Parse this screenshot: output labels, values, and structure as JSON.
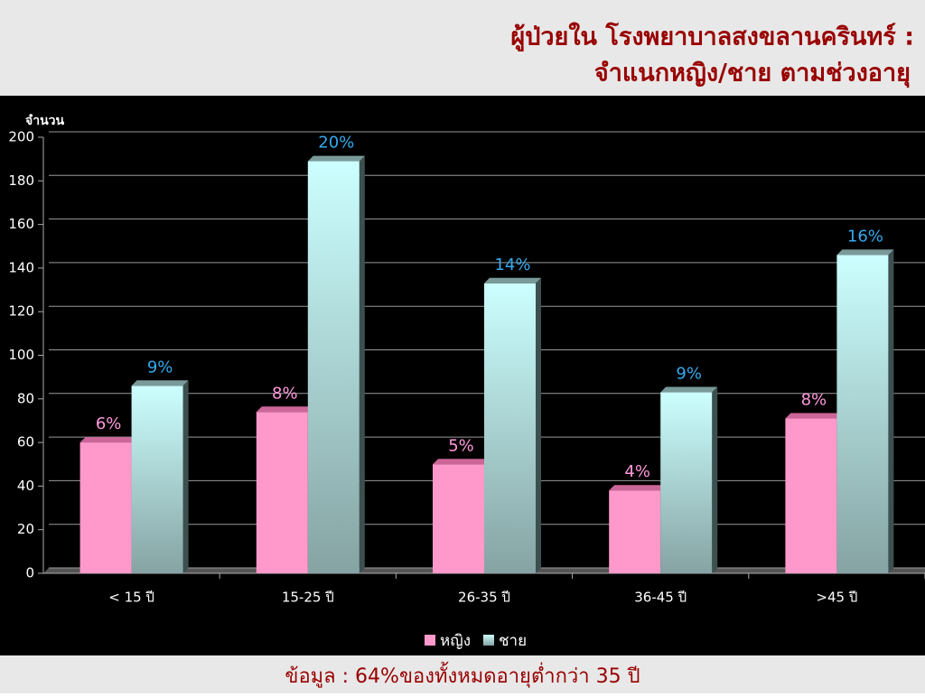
{
  "chart_data": {
    "type": "bar",
    "title": "ผู้ป่วยใน โรงพยาบาลสงขลานครินทร์ :",
    "subtitle": "จำแนกหญิง/ชาย ตามช่วงอายุ",
    "y_label": "จำนวน",
    "categories": [
      "< 15 ปี",
      "15-25 ปี",
      "26-35 ปี",
      "36-45 ปี",
      ">45 ปี"
    ],
    "series": [
      {
        "name": "หญิง",
        "color": "#ff99cc",
        "label_color": "#ff99dd",
        "values": [
          60,
          74,
          50,
          38,
          71
        ],
        "percent_labels": [
          "6%",
          "8%",
          "5%",
          "4%",
          "8%"
        ]
      },
      {
        "name": "ชาย",
        "color": "#ccffff",
        "label_color": "#33aaee",
        "values": [
          86,
          189,
          133,
          83,
          146
        ],
        "percent_labels": [
          "9%",
          "20%",
          "14%",
          "9%",
          "16%"
        ]
      }
    ],
    "ylim": [
      0,
      200
    ],
    "yticks": [
      0,
      20,
      40,
      60,
      80,
      100,
      120,
      140,
      160,
      180,
      200
    ],
    "grid": true,
    "legend": "bottom",
    "footnote": "ข้อมูล : 64%ของทั้งหมดอายุต่ำกว่า 35 ปี"
  }
}
